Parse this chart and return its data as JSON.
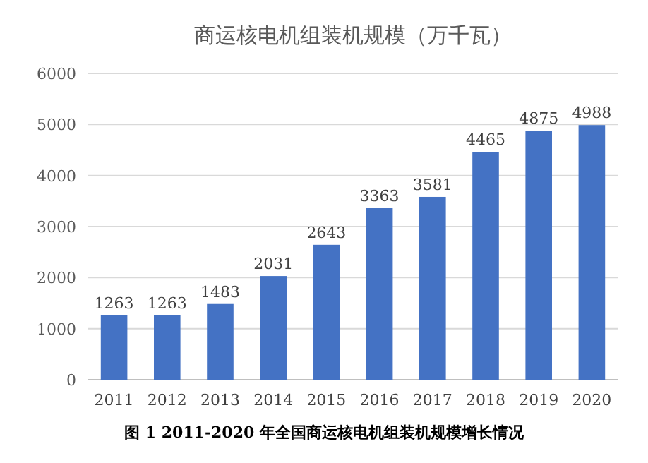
{
  "chart_data": {
    "type": "bar",
    "title": "商运核电机组装机规模（万千瓦）",
    "categories": [
      "2011",
      "2012",
      "2013",
      "2014",
      "2015",
      "2016",
      "2017",
      "2018",
      "2019",
      "2020"
    ],
    "values": [
      1263,
      1263,
      1483,
      2031,
      2643,
      3363,
      3581,
      4465,
      4875,
      4988
    ],
    "color": "#4472c4",
    "ylim": [
      0,
      6000
    ],
    "yticks": [
      0,
      1000,
      2000,
      3000,
      4000,
      5000,
      6000
    ],
    "grid": "y",
    "data_labels": true,
    "annotations": [
      "图 1 2011-2020 年全国商运核电机组装机规模增长情况"
    ]
  }
}
